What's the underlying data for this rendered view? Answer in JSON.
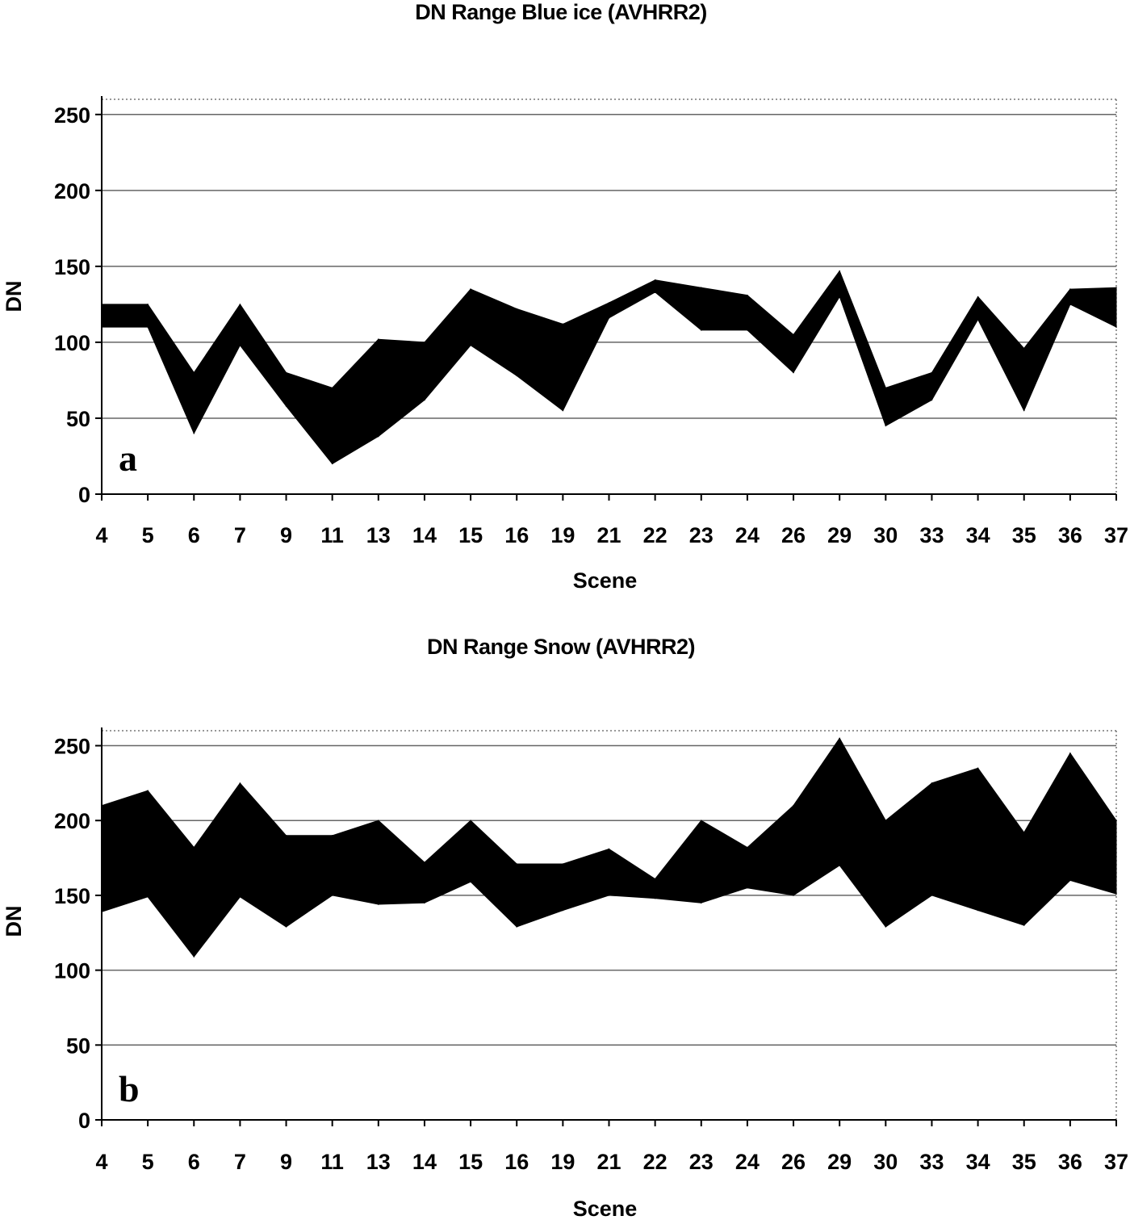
{
  "chart_data": [
    {
      "type": "area",
      "title": "DN Range Blue ice (AVHRR2)",
      "xlabel": "Scene",
      "ylabel": "DN",
      "panel_label": "a",
      "ylim": [
        0,
        260
      ],
      "yticks": [
        0,
        50,
        100,
        150,
        200,
        250
      ],
      "grid": true,
      "categories": [
        "4",
        "5",
        "6",
        "7",
        "9",
        "11",
        "13",
        "14",
        "15",
        "16",
        "19",
        "21",
        "22",
        "23",
        "24",
        "26",
        "29",
        "30",
        "33",
        "34",
        "35",
        "36",
        "37"
      ],
      "series": [
        {
          "name": "",
          "values": [
            110,
            110,
            40,
            98,
            58,
            20,
            38,
            62,
            98,
            78,
            55,
            116,
            133,
            108,
            108,
            80,
            130,
            45,
            62,
            115,
            55,
            125,
            110
          ]
        },
        {
          "name": "",
          "values": [
            125,
            125,
            80,
            125,
            80,
            70,
            102,
            100,
            135,
            122,
            112,
            126,
            141,
            136,
            131,
            105,
            147,
            70,
            80,
            130,
            96,
            135,
            136
          ]
        }
      ],
      "fill_color": "#000000"
    },
    {
      "type": "area",
      "title": "DN Range Snow (AVHRR2)",
      "xlabel": "Scene",
      "ylabel": "DN",
      "panel_label": "b",
      "ylim": [
        0,
        260
      ],
      "yticks": [
        0,
        50,
        100,
        150,
        200,
        250
      ],
      "grid": true,
      "categories": [
        "4",
        "5",
        "6",
        "7",
        "9",
        "11",
        "13",
        "14",
        "15",
        "16",
        "19",
        "21",
        "22",
        "23",
        "24",
        "26",
        "29",
        "30",
        "33",
        "34",
        "35",
        "36",
        "37"
      ],
      "series": [
        {
          "name": "",
          "values": [
            139,
            149,
            109,
            149,
            129,
            150,
            144,
            145,
            159,
            129,
            140,
            150,
            148,
            145,
            155,
            150,
            170,
            129,
            150,
            140,
            130,
            160,
            151
          ]
        },
        {
          "name": "",
          "values": [
            210,
            220,
            182,
            225,
            190,
            190,
            200,
            172,
            200,
            171,
            171,
            181,
            161,
            200,
            182,
            210,
            255,
            200,
            225,
            235,
            192,
            245,
            200
          ]
        }
      ],
      "fill_color": "#000000"
    }
  ]
}
